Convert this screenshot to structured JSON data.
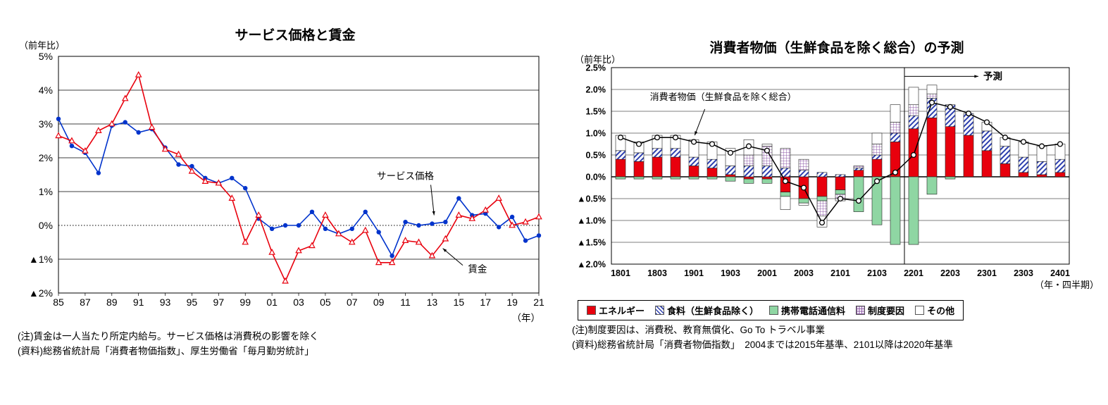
{
  "chart_data": [
    {
      "id": "service-price-wage",
      "type": "line",
      "title": "サービス価格と賃金",
      "y_unit_label": "（前年比）",
      "x_unit_label": "（年）",
      "ylim": [
        -2,
        5
      ],
      "start_year": 1985,
      "yticks": [
        {
          "v": 5,
          "label": "5%"
        },
        {
          "v": 4,
          "label": "4%"
        },
        {
          "v": 3,
          "label": "3%"
        },
        {
          "v": 2,
          "label": "2%"
        },
        {
          "v": 1,
          "label": "1%"
        },
        {
          "v": 0,
          "label": "0%"
        },
        {
          "v": -1,
          "label": "▲1%"
        },
        {
          "v": -2,
          "label": "▲2%"
        }
      ],
      "xtick_labels": [
        "85",
        "87",
        "89",
        "91",
        "93",
        "95",
        "97",
        "99",
        "01",
        "03",
        "05",
        "07",
        "09",
        "11",
        "13",
        "15",
        "17",
        "19",
        "21"
      ],
      "series": [
        {
          "name": "サービス価格",
          "color": "#0033cc",
          "marker": "circle",
          "values": [
            3.15,
            2.35,
            2.15,
            1.55,
            2.95,
            3.05,
            2.75,
            2.85,
            2.3,
            1.8,
            1.75,
            1.4,
            1.25,
            1.4,
            1.1,
            0.2,
            -0.1,
            0.0,
            0.0,
            0.4,
            -0.1,
            -0.25,
            -0.1,
            0.4,
            -0.2,
            -0.9,
            0.1,
            0.0,
            0.05,
            0.1,
            0.8,
            0.3,
            0.35,
            -0.05,
            0.25,
            -0.45,
            -0.3
          ]
        },
        {
          "name": "賃金",
          "color": "#e8000d",
          "marker": "triangle-open",
          "values": [
            2.65,
            2.5,
            2.2,
            2.8,
            3.0,
            3.75,
            4.45,
            2.9,
            2.25,
            2.1,
            1.6,
            1.3,
            1.25,
            0.8,
            -0.5,
            0.3,
            -0.8,
            -1.65,
            -0.75,
            -0.6,
            0.3,
            -0.25,
            -0.5,
            -0.15,
            -1.1,
            -1.1,
            -0.45,
            -0.5,
            -0.9,
            -0.4,
            0.3,
            0.2,
            0.45,
            0.8,
            0.0,
            0.1,
            0.25
          ]
        }
      ],
      "annotations": [
        {
          "text": "サービス価格",
          "t_year": 2011.0,
          "t_value": 1.45,
          "f_year": 2012.9,
          "f_value": 1.2,
          "a_year": 2013.15,
          "a_value": 0.3
        },
        {
          "text": "賃金",
          "t_year": 2016.4,
          "t_value": -1.3,
          "f_year": 2015.3,
          "f_value": -1.18,
          "a_year": 2013.8,
          "a_value": -0.68
        }
      ],
      "notes": [
        "(注)賃金は一人当たり所定内給与。サービス価格は消費税の影響を除く",
        "(資料)総務省統計局「消費者物価指数」、厚生労働省「毎月勤労統計」"
      ]
    },
    {
      "id": "cpi-forecast",
      "type": "bar-line",
      "title": "消費者物価（生鮮食品を除く総合）の予測",
      "y_unit_label": "（前年比）",
      "x_unit_label": "（年・四半期）",
      "ylim": [
        -2.0,
        2.5
      ],
      "yticks": [
        {
          "v": 2.5,
          "label": "2.5%"
        },
        {
          "v": 2.0,
          "label": "2.0%"
        },
        {
          "v": 1.5,
          "label": "1.5%"
        },
        {
          "v": 1.0,
          "label": "1.0%"
        },
        {
          "v": 0.5,
          "label": "0.5%"
        },
        {
          "v": 0.0,
          "label": "0.0%"
        },
        {
          "v": -0.5,
          "label": "▲0.5%"
        },
        {
          "v": -1.0,
          "label": "▲1.0%"
        },
        {
          "v": -1.5,
          "label": "▲1.5%"
        },
        {
          "v": -2.0,
          "label": "▲2.0%"
        }
      ],
      "quarters": [
        "1801",
        "1802",
        "1803",
        "1804",
        "1901",
        "1902",
        "1903",
        "1904",
        "2001",
        "2002",
        "2003",
        "2004",
        "2101",
        "2102",
        "2103",
        "2104",
        "2201",
        "2202",
        "2203",
        "2204",
        "2301",
        "2302",
        "2303",
        "2304",
        "2401"
      ],
      "xtick_labels": [
        "1801",
        "1803",
        "1901",
        "1903",
        "2001",
        "2003",
        "2101",
        "2103",
        "2201",
        "2203",
        "2301",
        "2303",
        "2401"
      ],
      "bar_series": [
        {
          "name": "エネルギー",
          "kind": "solid",
          "color": "#e8000d",
          "values": [
            0.4,
            0.35,
            0.45,
            0.45,
            0.25,
            0.2,
            0.05,
            -0.05,
            -0.05,
            -0.35,
            -0.5,
            -0.45,
            -0.3,
            0.15,
            0.4,
            0.8,
            1.1,
            1.35,
            1.15,
            0.95,
            0.6,
            0.3,
            0.1,
            0.05,
            0.1
          ]
        },
        {
          "name": "食料（生鮮食品除く）",
          "kind": "stripe",
          "color": "#2d3fae",
          "values": [
            0.2,
            0.2,
            0.2,
            0.2,
            0.2,
            0.2,
            0.2,
            0.25,
            0.25,
            0.2,
            0.15,
            0.1,
            0.05,
            0.05,
            0.1,
            0.2,
            0.3,
            0.45,
            0.5,
            0.5,
            0.45,
            0.4,
            0.35,
            0.3,
            0.3
          ]
        },
        {
          "name": "携帯電話通信料",
          "kind": "solid",
          "color": "#8fd6a3",
          "values": [
            -0.05,
            -0.05,
            -0.05,
            -0.05,
            -0.05,
            -0.05,
            -0.1,
            -0.1,
            -0.1,
            -0.1,
            -0.1,
            -0.1,
            -0.1,
            -0.8,
            -1.1,
            -1.55,
            -1.55,
            -0.4,
            -0.05,
            0,
            0,
            0,
            0,
            0,
            0
          ]
        },
        {
          "name": "制度要因",
          "kind": "grid",
          "color": "#8f5ba8",
          "values": [
            0,
            0,
            0,
            0,
            0,
            0,
            0,
            0.25,
            0.45,
            0.45,
            0.25,
            -0.35,
            -0.1,
            0.05,
            0.25,
            0.25,
            0.25,
            0.1,
            0,
            0,
            0,
            0,
            0,
            0,
            0
          ]
        },
        {
          "name": "その他",
          "kind": "plain",
          "color": "#ffffff",
          "values": [
            0.35,
            0.25,
            0.3,
            0.3,
            0.4,
            0.4,
            0.4,
            0.35,
            0.05,
            -0.3,
            -0.05,
            -0.25,
            -0.05,
            0.0,
            0.25,
            0.4,
            0.4,
            0.2,
            0.0,
            0.0,
            0.2,
            0.2,
            0.35,
            0.35,
            0.35
          ]
        }
      ],
      "line_series": {
        "name": "消費者物価（生鮮食品を除く総合）",
        "color": "#000000",
        "values": [
          0.9,
          0.75,
          0.9,
          0.9,
          0.8,
          0.75,
          0.55,
          0.7,
          0.6,
          -0.1,
          -0.25,
          -1.05,
          -0.5,
          -0.55,
          -0.1,
          0.1,
          0.5,
          1.7,
          1.6,
          1.45,
          1.25,
          0.9,
          0.8,
          0.7,
          0.75
        ]
      },
      "forecast": {
        "label": "予測",
        "boundary_index": 16
      },
      "annotation": {
        "text": "消費者物価（生鮮食品を除く総合）",
        "t_index": 5.6,
        "t_value": 1.82,
        "f_index": 4.6,
        "f_value": 1.55,
        "a_index": 4.05,
        "a_value": 0.95
      },
      "notes": [
        "(注)制度要因は、消費税、教育無償化、Go To トラベル事業",
        "(資料)総務省統計局「消費者物価指数」　2004までは2015年基準、2101以降は2020年基準"
      ]
    }
  ]
}
